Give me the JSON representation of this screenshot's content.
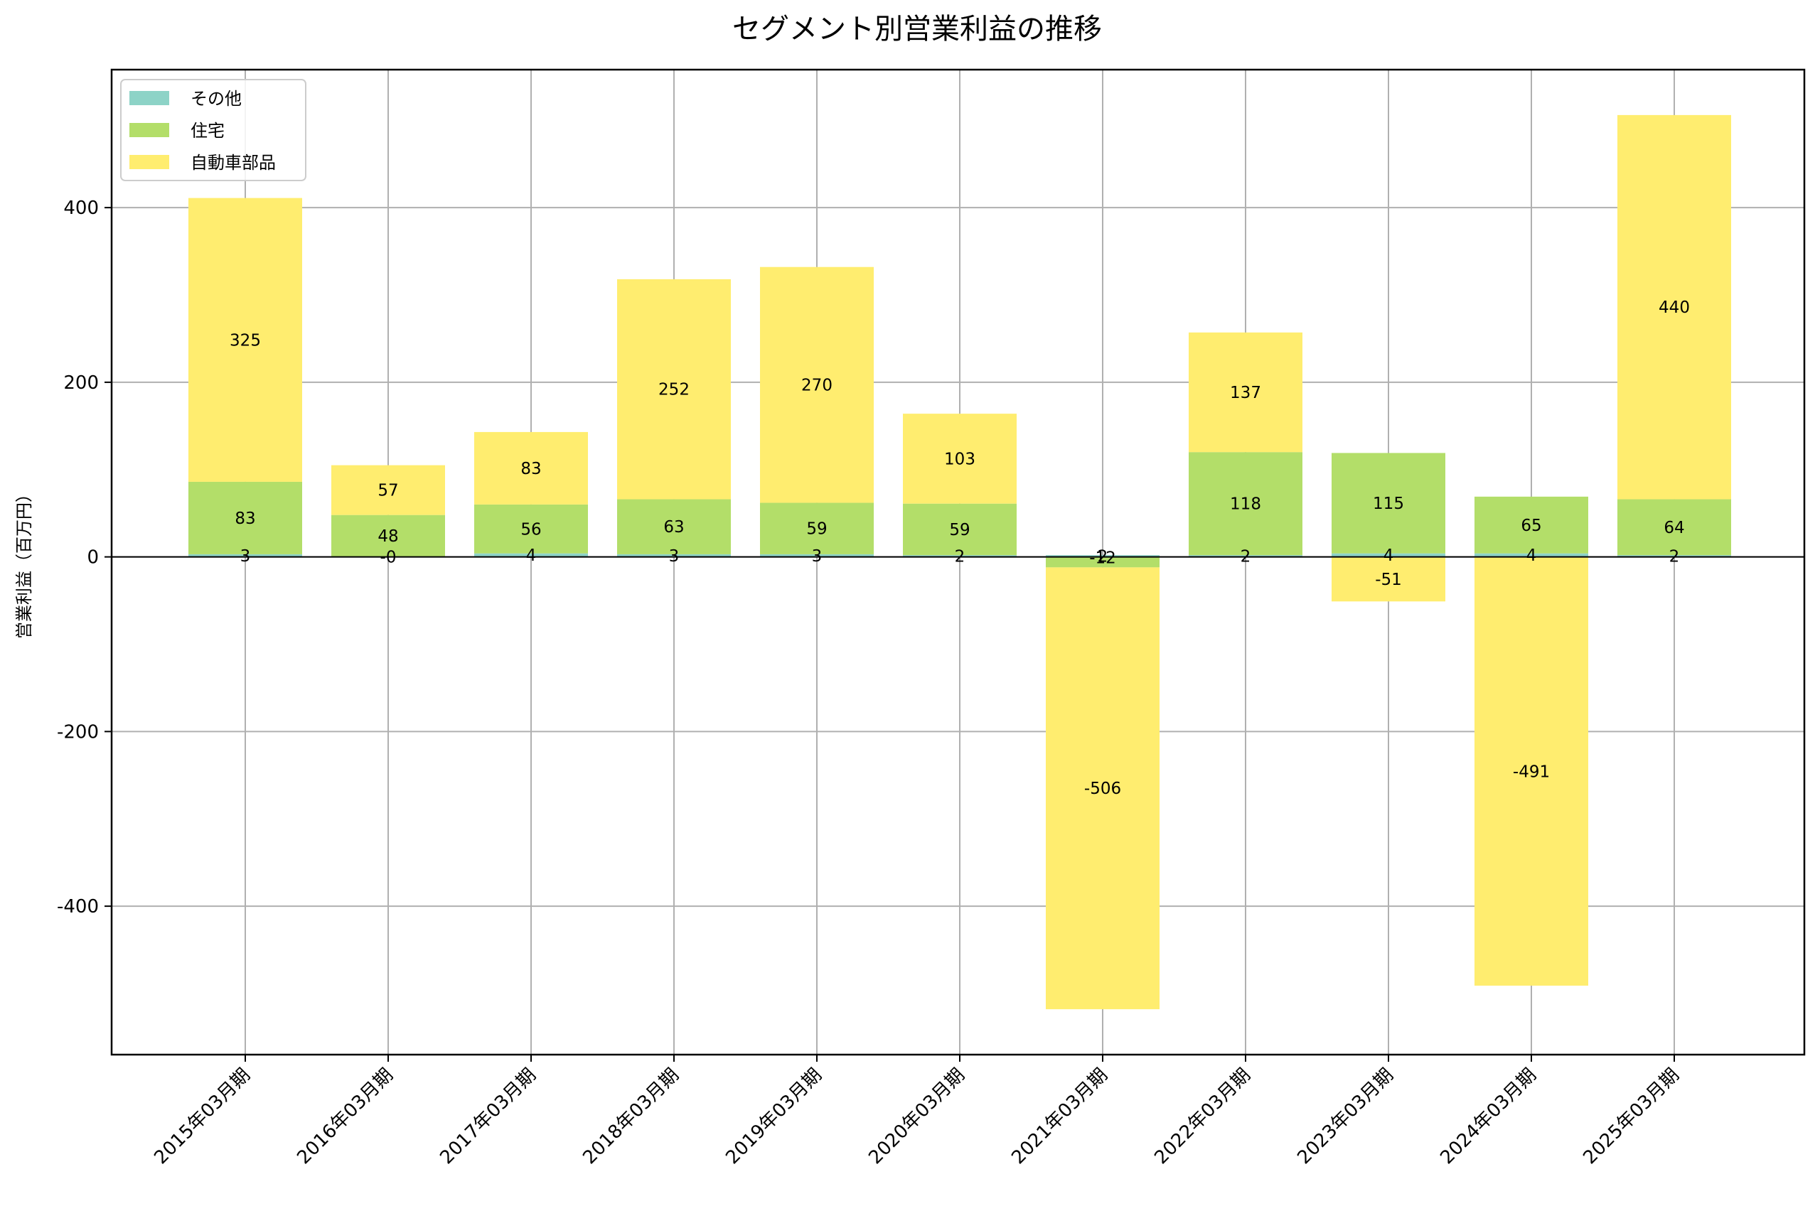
{
  "chart_data": {
    "type": "bar",
    "stacked": true,
    "title": "セグメント別営業利益の推移",
    "xlabel": "",
    "ylabel": "営業利益（百万円）",
    "categories": [
      "2015年03月期",
      "2016年03月期",
      "2017年03月期",
      "2018年03月期",
      "2019年03月期",
      "2020年03月期",
      "2021年03月期",
      "2022年03月期",
      "2023年03月期",
      "2024年03月期",
      "2025年03月期"
    ],
    "series": [
      {
        "name": "その他",
        "color": "#8dd3c7",
        "values": [
          3,
          0,
          4,
          3,
          3,
          2,
          2,
          2,
          4,
          4,
          2
        ],
        "labels": [
          "3",
          "-0",
          "4",
          "3",
          "3",
          "2",
          "2",
          "2",
          "4",
          "4",
          "2"
        ]
      },
      {
        "name": "住宅",
        "color": "#b3de69",
        "values": [
          83,
          48,
          56,
          63,
          59,
          59,
          -12,
          118,
          115,
          65,
          64
        ],
        "labels": [
          "83",
          "48",
          "56",
          "63",
          "59",
          "59",
          "-12",
          "118",
          "115",
          "65",
          "64"
        ]
      },
      {
        "name": "自動車部品",
        "color": "#ffed6f",
        "values": [
          325,
          57,
          83,
          252,
          270,
          103,
          -506,
          137,
          -51,
          -491,
          440
        ],
        "labels": [
          "325",
          "57",
          "83",
          "252",
          "270",
          "103",
          "-506",
          "137",
          "-51",
          "-491",
          "440"
        ]
      }
    ],
    "ylim": [
      -570,
      558
    ],
    "yticks": [
      -400,
      -200,
      0,
      200,
      400
    ],
    "ytick_labels": [
      "-400",
      "-200",
      "0",
      "200",
      "400"
    ],
    "grid": true,
    "legend_position": "top-left"
  }
}
